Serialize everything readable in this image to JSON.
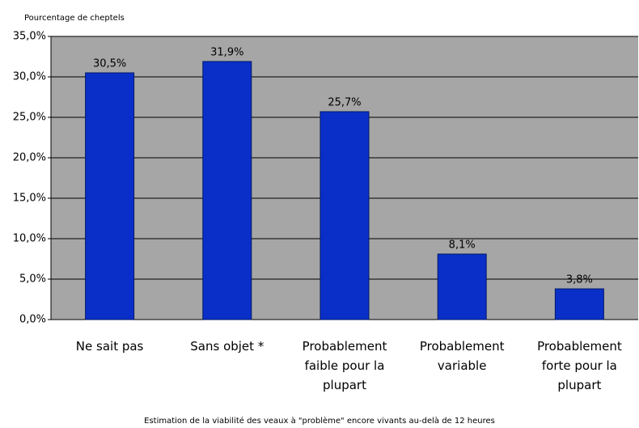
{
  "chart_data": {
    "type": "bar",
    "y_axis_label": "Pourcentage de cheptels",
    "x_axis_label": "Estimation de la viabilité des veaux à \"problème\" encore vivants au-delà de 12 heures",
    "categories": [
      "Ne sait pas",
      "Sans objet *",
      "Probablement faible pour la plupart",
      "Probablement variable",
      "Probablement forte pour la plupart"
    ],
    "values": [
      30.5,
      31.9,
      25.7,
      8.1,
      3.8
    ],
    "value_labels": [
      "30,5%",
      "31,9%",
      "25,7%",
      "8,1%",
      "3,8%"
    ],
    "color": "#0a2fc8",
    "ylim": [
      0,
      35
    ],
    "yticks": [
      {
        "value": 0,
        "label": "0,0%"
      },
      {
        "value": 5,
        "label": "5,0%"
      },
      {
        "value": 10,
        "label": "10,0%"
      },
      {
        "value": 15,
        "label": "15,0%"
      },
      {
        "value": 20,
        "label": "20,0%"
      },
      {
        "value": 25,
        "label": "25,0%"
      },
      {
        "value": 30,
        "label": "30,0%"
      },
      {
        "value": 35,
        "label": "35,0%"
      }
    ],
    "grid": true
  }
}
